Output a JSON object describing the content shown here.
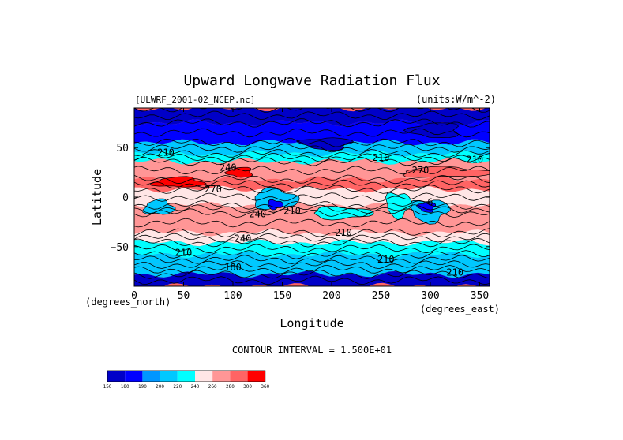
{
  "chart_data": {
    "type": "heatmap",
    "title": "Upward Longwave Radiation Flux",
    "source_label": "[ULWRF_2001-02_NCEP.nc]",
    "units_label": "(units:W/m^-2)",
    "xlabel": "Longitude",
    "ylabel": "Latitude",
    "x_unit_label": "(degrees_east)",
    "y_unit_label": "(degrees_north)",
    "contour_interval_text": "CONTOUR INTERVAL = 1.500E+01",
    "xlim": [
      0,
      360
    ],
    "ylim": [
      -90,
      90
    ],
    "x_ticks": [
      0,
      50,
      100,
      150,
      200,
      250,
      300,
      350
    ],
    "y_ticks": [
      50,
      0,
      -50
    ],
    "x_tick_labels": [
      "0",
      "50",
      "100",
      "150",
      "200",
      "250",
      "300",
      "350"
    ],
    "y_tick_labels": [
      "50",
      "0",
      "−50"
    ],
    "contour_labels": [
      {
        "text": "210",
        "lon": 32,
        "lat": 45
      },
      {
        "text": "240",
        "lon": 95,
        "lat": 30
      },
      {
        "text": "210",
        "lon": 250,
        "lat": 40
      },
      {
        "text": "270",
        "lon": 290,
        "lat": 27
      },
      {
        "text": "210",
        "lon": 345,
        "lat": 38
      },
      {
        "text": "270",
        "lon": 80,
        "lat": 8
      },
      {
        "text": "240",
        "lon": 125,
        "lat": -17
      },
      {
        "text": "210",
        "lon": 160,
        "lat": -14
      },
      {
        "text": "240",
        "lon": 110,
        "lat": -42
      },
      {
        "text": "210",
        "lon": 212,
        "lat": -36
      },
      {
        "text": "210",
        "lon": 50,
        "lat": -56
      },
      {
        "text": "210",
        "lon": 255,
        "lat": -63
      },
      {
        "text": "180",
        "lon": 100,
        "lat": -71
      },
      {
        "text": "210",
        "lon": 325,
        "lat": -76
      },
      {
        "text": "6",
        "lon": 300,
        "lat": -5
      }
    ],
    "colorbar": {
      "levels": [
        150,
        180,
        190,
        200,
        220,
        240,
        260,
        280,
        300,
        360
      ],
      "labels": [
        "150",
        "180",
        "190",
        "200",
        "220",
        "240",
        "260",
        "280",
        "300",
        "360"
      ],
      "colors": [
        "#0000c8",
        "#0000ff",
        "#0096ff",
        "#00c8ff",
        "#00ffff",
        "#ffe6e6",
        "#ff9696",
        "#ff6464",
        "#ff0000"
      ]
    },
    "zonal_bands": [
      {
        "lat": [
          75,
          90
        ],
        "value": 165
      },
      {
        "lat": [
          55,
          75
        ],
        "value": 185
      },
      {
        "lat": [
          44,
          55
        ],
        "value": 210
      },
      {
        "lat": [
          36,
          44
        ],
        "value": 230
      },
      {
        "lat": [
          18,
          36
        ],
        "value": 270
      },
      {
        "lat": [
          8,
          18
        ],
        "value": 280
      },
      {
        "lat": [
          -8,
          8
        ],
        "value": 255
      },
      {
        "lat": [
          -16,
          -8
        ],
        "value": 270
      },
      {
        "lat": [
          -36,
          -16
        ],
        "value": 275
      },
      {
        "lat": [
          -46,
          -36
        ],
        "value": 250
      },
      {
        "lat": [
          -58,
          -46
        ],
        "value": 230
      },
      {
        "lat": [
          -68,
          -58
        ],
        "value": 215
      },
      {
        "lat": [
          -78,
          -68
        ],
        "value": 205
      },
      {
        "lat": [
          -90,
          -78
        ],
        "value": 170
      }
    ],
    "regions": [
      {
        "lon": [
          10,
          40
        ],
        "lat": [
          -3,
          -18
        ],
        "value": 205
      },
      {
        "lon": [
          120,
          165
        ],
        "lat": [
          8,
          -12
        ],
        "value": 200
      },
      {
        "lon": [
          135,
          150
        ],
        "lat": [
          -3,
          -12
        ],
        "value": 180
      },
      {
        "lon": [
          280,
          318
        ],
        "lat": [
          -2,
          -25
        ],
        "value": 205
      },
      {
        "lon": [
          288,
          305
        ],
        "lat": [
          -5,
          -15
        ],
        "value": 185
      },
      {
        "lon": [
          95,
          120
        ],
        "lat": [
          30,
          20
        ],
        "value": 300
      },
      {
        "lon": [
          20,
          70
        ],
        "lat": [
          20,
          10
        ],
        "value": 300
      },
      {
        "lon": [
          270,
          360
        ],
        "lat": [
          30,
          20
        ],
        "value": 285
      },
      {
        "lon": [
          180,
          240
        ],
        "lat": [
          -10,
          -22
        ],
        "value": 230
      },
      {
        "lon": [
          255,
          280
        ],
        "lat": [
          5,
          -20
        ],
        "value": 230
      },
      {
        "lon": [
          170,
          220
        ],
        "lat": [
          60,
          48
        ],
        "value": 165
      },
      {
        "lon": [
          280,
          330
        ],
        "lat": [
          75,
          60
        ],
        "value": 165
      }
    ]
  }
}
